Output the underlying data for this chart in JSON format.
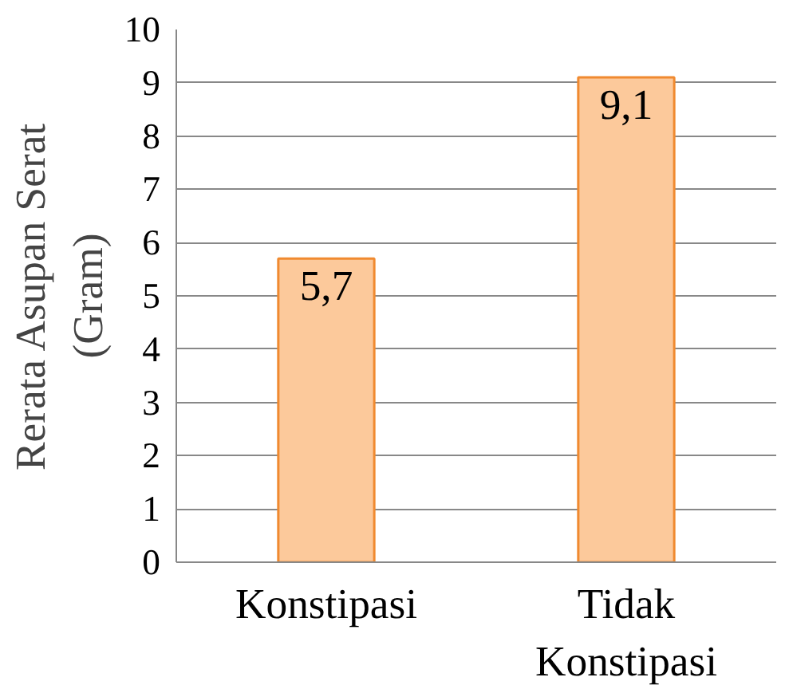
{
  "chart_data": {
    "type": "bar",
    "ylabel": "Rerata Asupan Serat (Gram)",
    "categories": [
      "Konstipasi",
      "Tidak Konstipasi"
    ],
    "values": [
      5.7,
      9.1
    ],
    "value_labels": [
      "5,7",
      "9,1"
    ],
    "color": "#fcc99b",
    "ylim": [
      0,
      10
    ],
    "yticks": [
      0,
      1,
      2,
      3,
      4,
      5,
      6,
      7,
      8,
      9,
      10
    ],
    "grid": "y"
  }
}
